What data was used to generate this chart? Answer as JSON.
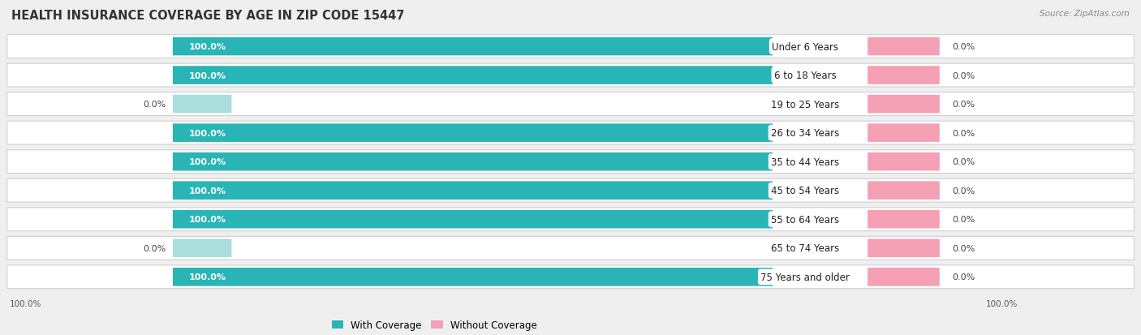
{
  "title": "HEALTH INSURANCE COVERAGE BY AGE IN ZIP CODE 15447",
  "source": "Source: ZipAtlas.com",
  "categories": [
    "Under 6 Years",
    "6 to 18 Years",
    "19 to 25 Years",
    "26 to 34 Years",
    "35 to 44 Years",
    "45 to 54 Years",
    "55 to 64 Years",
    "65 to 74 Years",
    "75 Years and older"
  ],
  "with_coverage": [
    100.0,
    100.0,
    0.0,
    100.0,
    100.0,
    100.0,
    100.0,
    0.0,
    100.0
  ],
  "without_coverage": [
    0.0,
    0.0,
    0.0,
    0.0,
    0.0,
    0.0,
    0.0,
    0.0,
    0.0
  ],
  "color_with": "#29b5b5",
  "color_without": "#f5a0b5",
  "color_with_light": "#aadede",
  "bg_color": "#efefef",
  "row_bg_color": "#ffffff",
  "title_fontsize": 10.5,
  "label_fontsize": 8.0,
  "cat_fontsize": 8.5,
  "figsize": [
    14.06,
    4.14
  ]
}
